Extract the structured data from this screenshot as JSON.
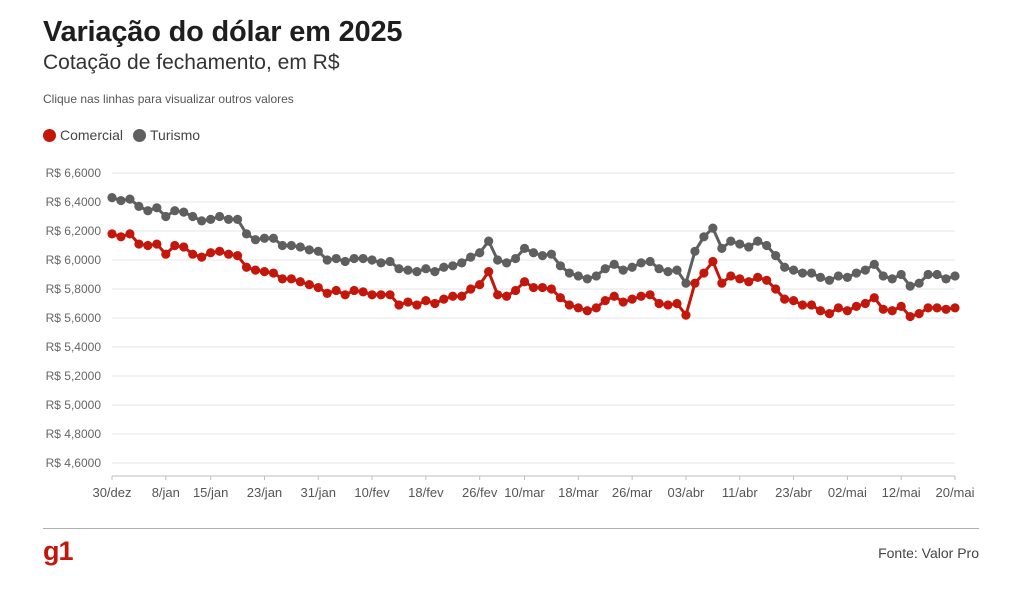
{
  "header": {
    "title": "Variação do dólar em 2025",
    "subtitle": "Cotação de fechamento, em R$",
    "hint": "Clique nas linhas para visualizar outros valores"
  },
  "footer": {
    "logo": "g1",
    "source": "Fonte: Valor Pro"
  },
  "chart_data": {
    "type": "line",
    "ylim": [
      4.5,
      6.65
    ],
    "y_ticks": [
      4.6,
      4.8,
      5.0,
      5.2,
      5.4,
      5.6,
      5.8,
      6.0,
      6.2,
      6.4,
      6.6
    ],
    "y_tick_labels": [
      "R$ 4,6000",
      "R$ 4,8000",
      "R$ 5,0000",
      "R$ 5,2000",
      "R$ 5,4000",
      "R$ 5,6000",
      "R$ 5,8000",
      "R$ 6,0000",
      "R$ 6,2000",
      "R$ 6,4000",
      "R$ 6,6000"
    ],
    "x_tick_labels": [
      {
        "index": 0,
        "label": "30/dez"
      },
      {
        "index": 6,
        "label": "8/jan"
      },
      {
        "index": 11,
        "label": "15/jan"
      },
      {
        "index": 17,
        "label": "23/jan"
      },
      {
        "index": 23,
        "label": "31/jan"
      },
      {
        "index": 29,
        "label": "10/fev"
      },
      {
        "index": 35,
        "label": "18/fev"
      },
      {
        "index": 41,
        "label": "26/fev"
      },
      {
        "index": 46,
        "label": "10/mar"
      },
      {
        "index": 52,
        "label": "18/mar"
      },
      {
        "index": 58,
        "label": "26/mar"
      },
      {
        "index": 64,
        "label": "03/abr"
      },
      {
        "index": 70,
        "label": "11/abr"
      },
      {
        "index": 76,
        "label": "23/abr"
      },
      {
        "index": 82,
        "label": "02/mai"
      },
      {
        "index": 88,
        "label": "12/mai"
      },
      {
        "index": 94,
        "label": "20/mai"
      }
    ],
    "grid": true,
    "legend_position": "top-left",
    "series": [
      {
        "name": "Comercial",
        "color": "#c4170c",
        "values": [
          6.18,
          6.16,
          6.18,
          6.11,
          6.1,
          6.11,
          6.04,
          6.1,
          6.09,
          6.04,
          6.02,
          6.05,
          6.06,
          6.04,
          6.03,
          5.95,
          5.93,
          5.92,
          5.91,
          5.87,
          5.87,
          5.85,
          5.83,
          5.81,
          5.77,
          5.79,
          5.76,
          5.79,
          5.78,
          5.76,
          5.76,
          5.76,
          5.69,
          5.71,
          5.69,
          5.72,
          5.7,
          5.73,
          5.75,
          5.75,
          5.8,
          5.83,
          5.92,
          5.76,
          5.75,
          5.79,
          5.85,
          5.81,
          5.81,
          5.8,
          5.74,
          5.69,
          5.67,
          5.65,
          5.67,
          5.72,
          5.75,
          5.71,
          5.73,
          5.75,
          5.76,
          5.7,
          5.69,
          5.7,
          5.62,
          5.84,
          5.91,
          5.99,
          5.84,
          5.89,
          5.87,
          5.85,
          5.88,
          5.86,
          5.8,
          5.73,
          5.72,
          5.69,
          5.69,
          5.65,
          5.63,
          5.67,
          5.65,
          5.68,
          5.7,
          5.74,
          5.66,
          5.65,
          5.68,
          5.61,
          5.63,
          5.67,
          5.67,
          5.66,
          5.67
        ]
      },
      {
        "name": "Turismo",
        "color": "#5f5f5f",
        "values": [
          6.43,
          6.41,
          6.42,
          6.37,
          6.34,
          6.36,
          6.3,
          6.34,
          6.33,
          6.3,
          6.27,
          6.28,
          6.3,
          6.28,
          6.28,
          6.18,
          6.14,
          6.15,
          6.15,
          6.1,
          6.1,
          6.09,
          6.07,
          6.06,
          6.0,
          6.01,
          5.99,
          6.01,
          6.01,
          6.0,
          5.98,
          5.99,
          5.94,
          5.93,
          5.92,
          5.94,
          5.92,
          5.95,
          5.96,
          5.98,
          6.02,
          6.05,
          6.13,
          6.0,
          5.98,
          6.01,
          6.08,
          6.05,
          6.03,
          6.04,
          5.96,
          5.91,
          5.89,
          5.87,
          5.89,
          5.94,
          5.97,
          5.93,
          5.95,
          5.98,
          5.99,
          5.94,
          5.92,
          5.93,
          5.84,
          6.06,
          6.16,
          6.22,
          6.08,
          6.13,
          6.11,
          6.09,
          6.13,
          6.1,
          6.03,
          5.95,
          5.93,
          5.91,
          5.91,
          5.88,
          5.86,
          5.89,
          5.88,
          5.91,
          5.93,
          5.97,
          5.89,
          5.87,
          5.9,
          5.82,
          5.84,
          5.9,
          5.9,
          5.87,
          5.89
        ]
      }
    ]
  }
}
